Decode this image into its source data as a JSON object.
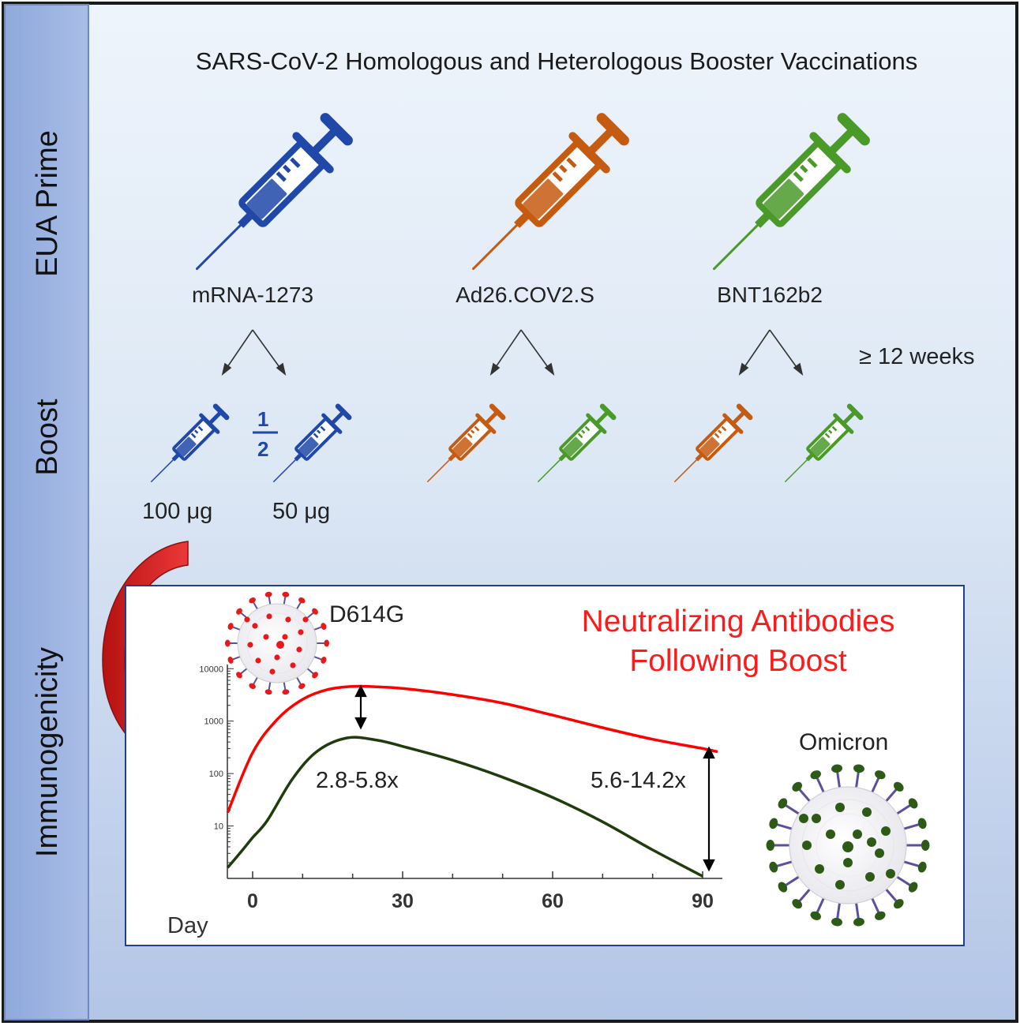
{
  "title": "SARS-CoV-2 Homologous and Heterologous Booster Vaccinations",
  "row_labels": {
    "prime": "EUA Prime",
    "boost": "Boost",
    "immunogenicity": "Immunogenicity"
  },
  "primes": [
    {
      "name": "mRNA-1273",
      "color": "#1f48a8"
    },
    {
      "name": "Ad26.COV2.S",
      "color": "#c55a11"
    },
    {
      "name": "BNT162b2",
      "color": "#4a9a2a"
    }
  ],
  "interval": "≥ 12 weeks",
  "fraction": {
    "numerator": "1",
    "denominator": "2"
  },
  "doses": [
    "100 μg",
    "50 μg"
  ],
  "colors": {
    "d614g": "#ff0000",
    "omicron": "#1f3d0c",
    "panel_border": "#1f3f8f",
    "virus_spike": "#5b4fa0"
  },
  "panel": {
    "title_line1": "Neutralizing Antibodies",
    "title_line2": "Following Boost",
    "d614g_label": "D614G",
    "omicron_label": "Omicron",
    "fold_early": "2.8-5.8x",
    "fold_late": "5.6-14.2x",
    "xlabel": "Day"
  },
  "chart_data": {
    "type": "line",
    "yscale": "log",
    "xlabel": "Day",
    "ylabel": "",
    "xlim": [
      -5,
      95
    ],
    "ylim": [
      1,
      12000
    ],
    "x_ticks": [
      0,
      30,
      60,
      90
    ],
    "y_ticks": [
      10,
      100,
      1000,
      10000
    ],
    "series": [
      {
        "name": "D614G",
        "color": "#ff0000",
        "x": [
          -5,
          0,
          5,
          10,
          15,
          20,
          25,
          30,
          40,
          50,
          60,
          70,
          80,
          90,
          93
        ],
        "y": [
          18,
          250,
          1100,
          2600,
          4000,
          4600,
          4500,
          4200,
          3200,
          2200,
          1300,
          750,
          450,
          300,
          260
        ]
      },
      {
        "name": "Omicron",
        "color": "#1f3d0c",
        "x": [
          -5,
          -2,
          0,
          3,
          8,
          13,
          19,
          25,
          30,
          40,
          50,
          60,
          70,
          80,
          90
        ],
        "y": [
          1.6,
          3.5,
          6,
          13,
          80,
          270,
          480,
          430,
          330,
          180,
          85,
          35,
          12,
          3.5,
          1.1
        ]
      }
    ]
  }
}
